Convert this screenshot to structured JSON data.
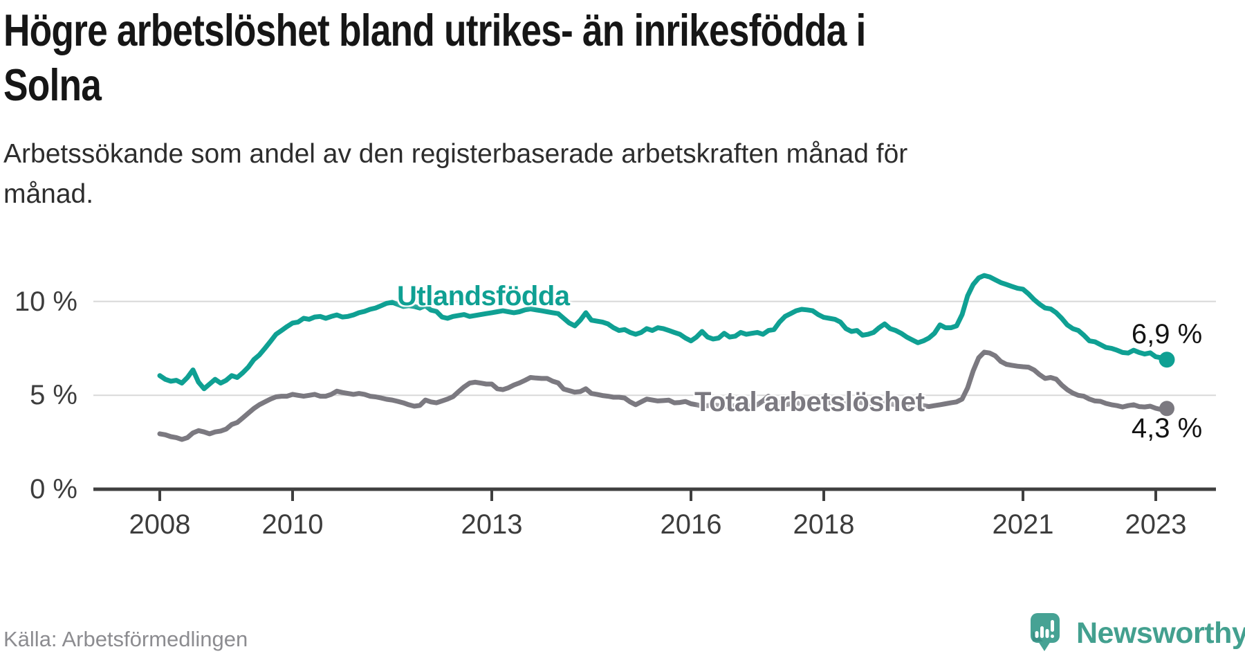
{
  "header": {
    "title_lines": [
      "Högre arbetslöshet bland utrikes- än inrikesfödda i",
      "Solna"
    ],
    "subtitle_lines": [
      "Arbetssökande som andel av den registerbaserade arbetskraften månad för",
      "månad."
    ]
  },
  "chart": {
    "y_axis": {
      "ticks": [
        {
          "value": 10,
          "label": "10 %"
        },
        {
          "value": 5,
          "label": "5 %"
        },
        {
          "value": 0,
          "label": "0 %"
        }
      ]
    },
    "x_axis": {
      "ticks": [
        {
          "year": 2008,
          "label": "2008"
        },
        {
          "year": 2010,
          "label": "2010"
        },
        {
          "year": 2013,
          "label": "2013"
        },
        {
          "year": 2016,
          "label": "2016"
        },
        {
          "year": 2018,
          "label": "2018"
        },
        {
          "year": 2021,
          "label": "2021"
        },
        {
          "year": 2023,
          "label": "2023"
        }
      ]
    },
    "series_labels": {
      "foreign": "Utlandsfödda",
      "total": "Total arbetslöshet"
    },
    "end_labels": {
      "foreign": "6,9 %",
      "total": "4,3 %"
    },
    "colors": {
      "foreign_line": "#0FA093",
      "total_line": "#7B7980",
      "gridline": "#d8d8d8",
      "axis": "#3f3f3f",
      "axis_text": "#3d3d3d",
      "end_label_text": "#131313"
    }
  },
  "chart_data": {
    "type": "line",
    "title": "Högre arbetslöshet bland utrikes- än inrikesfödda i Solna",
    "subtitle": "Arbetssökande som andel av den registerbaserade arbetskraften månad för månad.",
    "unit": "%",
    "frequency": "monthly",
    "x_start": "2008-01",
    "x_end": "2023-03",
    "x_tick_years": [
      2008,
      2010,
      2013,
      2016,
      2018,
      2021,
      2023
    ],
    "ylim": [
      0,
      12
    ],
    "y_ticks": [
      0,
      5,
      10
    ],
    "grid": "horizontal",
    "legend_position": "inline-labels",
    "series": [
      {
        "name": "Utlandsfödda",
        "color": "#0FA093",
        "last_value_label": "6,9 %",
        "values": [
          6.05,
          5.85,
          5.75,
          5.8,
          5.65,
          5.95,
          6.35,
          5.7,
          5.35,
          5.6,
          5.85,
          5.65,
          5.8,
          6.05,
          5.95,
          6.2,
          6.5,
          6.9,
          7.15,
          7.5,
          7.87,
          8.25,
          8.45,
          8.66,
          8.85,
          8.9,
          9.1,
          9.05,
          9.17,
          9.2,
          9.1,
          9.2,
          9.28,
          9.17,
          9.2,
          9.28,
          9.4,
          9.47,
          9.58,
          9.65,
          9.77,
          9.9,
          9.95,
          9.84,
          9.73,
          9.77,
          9.73,
          9.65,
          9.77,
          9.54,
          9.47,
          9.17,
          9.1,
          9.2,
          9.25,
          9.3,
          9.2,
          9.25,
          9.3,
          9.35,
          9.4,
          9.45,
          9.5,
          9.45,
          9.4,
          9.45,
          9.55,
          9.6,
          9.55,
          9.5,
          9.45,
          9.4,
          9.35,
          9.1,
          8.85,
          8.7,
          9.0,
          9.4,
          9.0,
          8.95,
          8.9,
          8.8,
          8.6,
          8.45,
          8.5,
          8.35,
          8.25,
          8.35,
          8.55,
          8.45,
          8.6,
          8.55,
          8.45,
          8.35,
          8.25,
          8.05,
          7.9,
          8.1,
          8.4,
          8.1,
          8.0,
          8.05,
          8.3,
          8.1,
          8.15,
          8.35,
          8.25,
          8.3,
          8.35,
          8.25,
          8.45,
          8.5,
          8.9,
          9.2,
          9.35,
          9.5,
          9.58,
          9.55,
          9.5,
          9.3,
          9.15,
          9.1,
          9.05,
          8.9,
          8.55,
          8.4,
          8.45,
          8.2,
          8.25,
          8.35,
          8.6,
          8.8,
          8.55,
          8.45,
          8.3,
          8.1,
          7.95,
          7.8,
          7.9,
          8.05,
          8.3,
          8.75,
          8.6,
          8.6,
          8.7,
          9.3,
          10.3,
          10.9,
          11.25,
          11.38,
          11.3,
          11.15,
          11.0,
          10.9,
          10.8,
          10.7,
          10.65,
          10.4,
          10.1,
          9.85,
          9.65,
          9.6,
          9.4,
          9.1,
          8.75,
          8.55,
          8.45,
          8.2,
          7.9,
          7.85,
          7.7,
          7.55,
          7.5,
          7.4,
          7.28,
          7.25,
          7.4,
          7.28,
          7.2,
          7.26,
          7.05,
          7.0,
          6.9
        ]
      },
      {
        "name": "Total arbetslöshet",
        "color": "#7B7980",
        "last_value_label": "4,3 %",
        "values": [
          2.95,
          2.9,
          2.8,
          2.75,
          2.65,
          2.75,
          3.0,
          3.12,
          3.05,
          2.95,
          3.05,
          3.1,
          3.2,
          3.45,
          3.55,
          3.8,
          4.05,
          4.3,
          4.5,
          4.65,
          4.8,
          4.92,
          4.95,
          4.95,
          5.05,
          5.0,
          4.95,
          5.0,
          5.05,
          4.95,
          4.95,
          5.05,
          5.22,
          5.15,
          5.1,
          5.05,
          5.1,
          5.05,
          4.95,
          4.92,
          4.86,
          4.79,
          4.75,
          4.68,
          4.6,
          4.5,
          4.42,
          4.46,
          4.75,
          4.65,
          4.6,
          4.7,
          4.8,
          4.93,
          5.2,
          5.45,
          5.65,
          5.7,
          5.65,
          5.6,
          5.6,
          5.35,
          5.3,
          5.4,
          5.55,
          5.66,
          5.8,
          5.95,
          5.92,
          5.9,
          5.9,
          5.75,
          5.66,
          5.33,
          5.25,
          5.17,
          5.2,
          5.35,
          5.1,
          5.05,
          4.99,
          4.95,
          4.9,
          4.9,
          4.86,
          4.65,
          4.5,
          4.65,
          4.8,
          4.75,
          4.7,
          4.72,
          4.74,
          4.6,
          4.62,
          4.67,
          4.55,
          4.5,
          4.43,
          4.45,
          4.5,
          4.45,
          4.4,
          4.42,
          4.45,
          4.4,
          4.42,
          4.45,
          4.5,
          4.7,
          4.95,
          4.75,
          4.6,
          4.5,
          4.55,
          4.6,
          4.55,
          4.6,
          4.65,
          4.7,
          4.65,
          4.6,
          4.65,
          4.6,
          4.55,
          4.6,
          4.65,
          4.6,
          4.55,
          4.5,
          4.55,
          4.6,
          4.55,
          4.5,
          4.45,
          4.4,
          4.45,
          4.5,
          4.45,
          4.4,
          4.45,
          4.5,
          4.55,
          4.6,
          4.65,
          4.8,
          5.4,
          6.3,
          7.0,
          7.3,
          7.25,
          7.1,
          6.8,
          6.65,
          6.6,
          6.55,
          6.52,
          6.5,
          6.35,
          6.1,
          5.9,
          5.95,
          5.86,
          5.55,
          5.3,
          5.12,
          5.0,
          4.95,
          4.8,
          4.7,
          4.68,
          4.57,
          4.5,
          4.45,
          4.38,
          4.45,
          4.5,
          4.4,
          4.38,
          4.42,
          4.31,
          4.24,
          4.3
        ]
      }
    ]
  },
  "footer": {
    "source": "Källa: Arbetsförmedlingen",
    "brand": "Newsworthy"
  }
}
